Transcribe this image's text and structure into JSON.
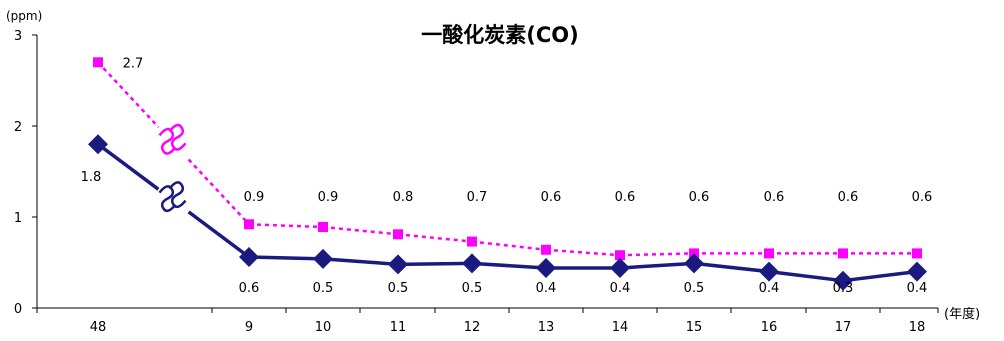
{
  "chart_data": {
    "type": "line",
    "title": "一酸化炭素(CO)",
    "ylabel": "(ppm)",
    "xlabel": "(年度)",
    "ylim": [
      0,
      3
    ],
    "yticks": [
      "0",
      "1",
      "2",
      "3"
    ],
    "categories": [
      "48",
      "9",
      "10",
      "11",
      "12",
      "13",
      "14",
      "15",
      "16",
      "17",
      "18"
    ],
    "series": [
      {
        "color": "#ff00ff",
        "line_style": "dotted",
        "marker": "square",
        "values": [
          2.7,
          0.92,
          0.89,
          0.81,
          0.73,
          0.64,
          0.58,
          0.6,
          0.6,
          0.6,
          0.6
        ],
        "labels": [
          "2.7",
          "0.9",
          "0.9",
          "0.8",
          "0.7",
          "0.6",
          "0.6",
          "0.6",
          "0.6",
          "0.6",
          "0.6"
        ]
      },
      {
        "color": "#1a1a80",
        "line_style": "solid",
        "marker": "diamond",
        "values": [
          1.8,
          0.56,
          0.54,
          0.48,
          0.49,
          0.44,
          0.44,
          0.49,
          0.4,
          0.3,
          0.4
        ],
        "labels": [
          "1.8",
          "0.6",
          "0.5",
          "0.5",
          "0.5",
          "0.4",
          "0.4",
          "0.5",
          "0.4",
          "0.3",
          "0.4"
        ]
      }
    ],
    "axis_break_between": [
      "48",
      "9"
    ],
    "grid": false,
    "legend": "none"
  }
}
